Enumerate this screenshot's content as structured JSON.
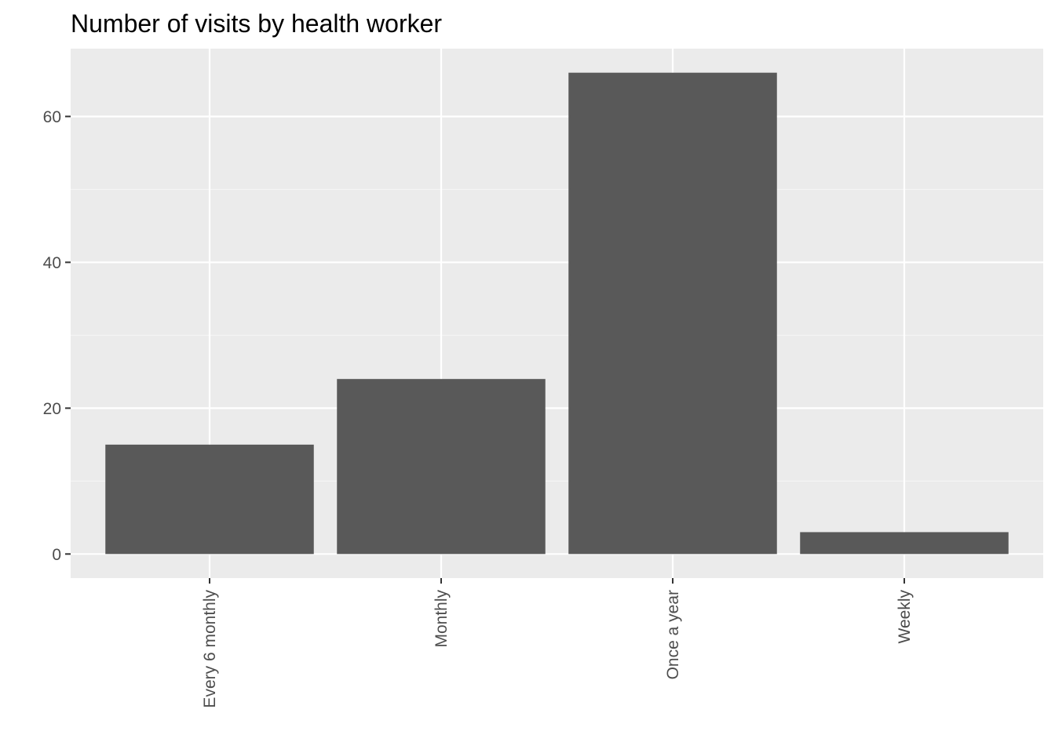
{
  "chart_data": {
    "type": "bar",
    "title": "Number of visits by health worker",
    "xlabel": "",
    "ylabel": "",
    "categories": [
      "Every 6 monthly",
      "Monthly",
      "Once a year",
      "Weekly"
    ],
    "values": [
      15,
      24,
      66,
      3
    ],
    "ylim": [
      -3.3,
      69.3
    ],
    "yticks": [
      0,
      20,
      40,
      60
    ],
    "ytick_labels": [
      "0",
      "20",
      "40",
      "60"
    ],
    "grid": true,
    "legend": "none",
    "x_tick_rotation": "vertical",
    "colors": {
      "panel_background": "#ebebeb",
      "grid_major": "#ffffff",
      "grid_minor": "#f5f5f5",
      "bar_fill": "#595959",
      "tick_mark": "#333333",
      "tick_label": "#4d4d4d",
      "title": "#000000"
    }
  }
}
